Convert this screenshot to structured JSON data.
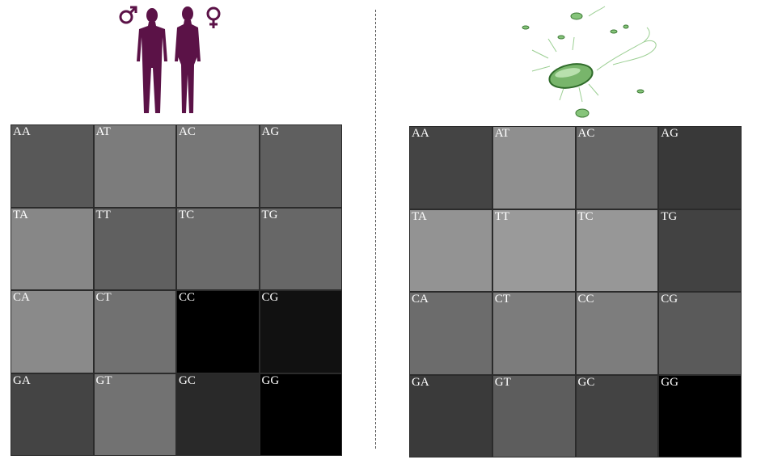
{
  "left_panel": {
    "icon": "human-male-female-icon",
    "icon_color": "#5b1247",
    "cells": [
      {
        "label": "AA",
        "color": "#585858"
      },
      {
        "label": "AT",
        "color": "#7c7c7c"
      },
      {
        "label": "AC",
        "color": "#777777"
      },
      {
        "label": "AG",
        "color": "#5f5f5f"
      },
      {
        "label": "TA",
        "color": "#878787"
      },
      {
        "label": "TT",
        "color": "#606060"
      },
      {
        "label": "TC",
        "color": "#6b6b6b"
      },
      {
        "label": "TG",
        "color": "#676767"
      },
      {
        "label": "CA",
        "color": "#8a8a8a"
      },
      {
        "label": "CT",
        "color": "#717171"
      },
      {
        "label": "CC",
        "color": "#000000"
      },
      {
        "label": "CG",
        "color": "#111111"
      },
      {
        "label": "GA",
        "color": "#444444"
      },
      {
        "label": "GT",
        "color": "#727272"
      },
      {
        "label": "GC",
        "color": "#292929"
      },
      {
        "label": "GG",
        "color": "#000000"
      }
    ]
  },
  "right_panel": {
    "icon": "bacteria-icon",
    "icon_color": "#4f9a48",
    "cells": [
      {
        "label": "AA",
        "color": "#444444"
      },
      {
        "label": "AT",
        "color": "#8f8f8f"
      },
      {
        "label": "AC",
        "color": "#676767"
      },
      {
        "label": "AG",
        "color": "#393939"
      },
      {
        "label": "TA",
        "color": "#939393"
      },
      {
        "label": "TT",
        "color": "#9a9a9a"
      },
      {
        "label": "TC",
        "color": "#979797"
      },
      {
        "label": "TG",
        "color": "#424242"
      },
      {
        "label": "CA",
        "color": "#6c6c6c"
      },
      {
        "label": "CT",
        "color": "#7c7c7c"
      },
      {
        "label": "CC",
        "color": "#7d7d7d"
      },
      {
        "label": "CG",
        "color": "#5a5a5a"
      },
      {
        "label": "GA",
        "color": "#3a3a3a"
      },
      {
        "label": "GT",
        "color": "#5d5d5d"
      },
      {
        "label": "GC",
        "color": "#434343"
      },
      {
        "label": "GG",
        "color": "#000000"
      }
    ]
  }
}
